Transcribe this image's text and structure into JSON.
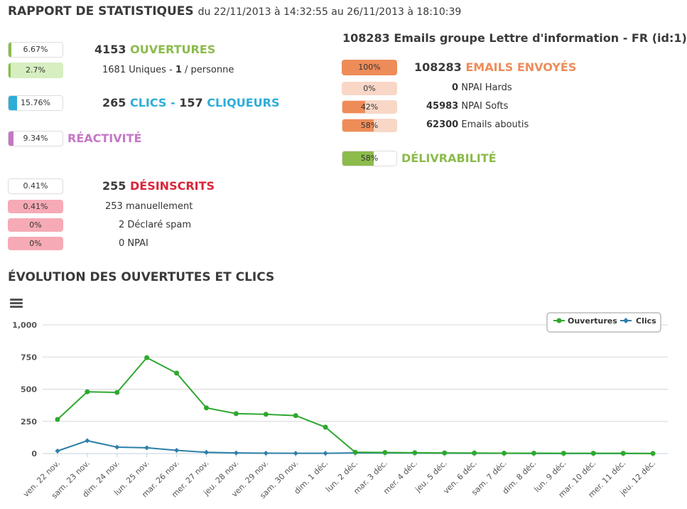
{
  "header": {
    "title": "RAPPORT DE STATISTIQUES",
    "period": "du 22/11/2013 à 14:32:55 au 26/11/2013 à 18:10:39"
  },
  "left": {
    "ouvertures": {
      "pct": "6.67%",
      "count": "4153",
      "label": "OUVERTURES"
    },
    "uniques": {
      "pct": "2.7%",
      "count": "1681",
      "text1": "Uniques -",
      "per": "1",
      "text2": "/ personne"
    },
    "clics": {
      "pct": "15.76%",
      "count": "265",
      "label": "CLICS -",
      "count2": "157",
      "label2": "CLIQUEURS"
    },
    "reactivite": {
      "pct": "9.34%",
      "label": "RÉACTIVITÉ"
    },
    "desinscrits": {
      "pct": "0.41%",
      "count": "255",
      "label": "DÉSINSCRITS"
    },
    "manuellement": {
      "pct": "0.41%",
      "count": "253",
      "label": "manuellement"
    },
    "spam": {
      "pct": "0%",
      "count": "2",
      "label": "Déclaré spam"
    },
    "npai": {
      "pct": "0%",
      "count": "0",
      "label": "NPAI"
    }
  },
  "right": {
    "title": "108283 Emails groupe Lettre d'information - FR (id:1)",
    "envoyes": {
      "pct": "100%",
      "count": "108283",
      "label": "EMAILS ENVOYÉS"
    },
    "npai_hards": {
      "pct": "0%",
      "count": "0",
      "label": "NPAI Hards"
    },
    "npai_softs": {
      "pct": "42%",
      "count": "45983",
      "label": "NPAI Softs"
    },
    "aboutis": {
      "pct": "58%",
      "count": "62300",
      "label": "Emails aboutis"
    },
    "delivrabilite": {
      "pct": "58%",
      "label": "DÉLIVRABILITÉ"
    }
  },
  "colors": {
    "green": "#8cbb4c",
    "blue": "#2eadd8",
    "purple": "#c577c5",
    "red": "#d9263a",
    "orange": "#ee8c59",
    "light_green": "#d6eec0",
    "pink": "#f6aab5",
    "peach": "#f8d7c7"
  },
  "chart_section": {
    "title": "ÉVOLUTION DES OUVERTUTES ET CLICS",
    "menu_icon": "hamburger-menu-icon"
  },
  "chart_data": {
    "type": "line",
    "categories": [
      "ven. 22 nov.",
      "sam. 23 nov.",
      "dim. 24 nov.",
      "lun. 25 nov.",
      "mar. 26 nov.",
      "mer. 27 nov.",
      "jeu. 28 nov.",
      "ven. 29 nov.",
      "sam. 30 nov.",
      "dim. 1 déc.",
      "lun. 2 déc.",
      "mar. 3 déc.",
      "mer. 4 déc.",
      "jeu. 5 déc.",
      "ven. 6 déc.",
      "sam. 7 déc.",
      "dim. 8 déc.",
      "lun. 9 déc.",
      "mar. 10 déc.",
      "mer. 11 déc.",
      "jeu. 12 déc."
    ],
    "series": [
      {
        "name": "Ouvertures",
        "color": "#2ea82e",
        "values": [
          265,
          480,
          475,
          745,
          625,
          355,
          310,
          305,
          295,
          205,
          10,
          8,
          6,
          5,
          4,
          3,
          3,
          2,
          2,
          2,
          1
        ]
      },
      {
        "name": "Clics",
        "color": "#2d7fa8",
        "values": [
          20,
          100,
          50,
          45,
          25,
          10,
          5,
          3,
          2,
          2,
          5,
          5,
          4,
          3,
          2,
          2,
          1,
          1,
          1,
          1,
          1
        ]
      }
    ],
    "yticks": [
      "0",
      "250",
      "500",
      "750",
      "1,000"
    ],
    "ylim": [
      0,
      1000
    ],
    "legend": "top-right",
    "grid": true
  }
}
